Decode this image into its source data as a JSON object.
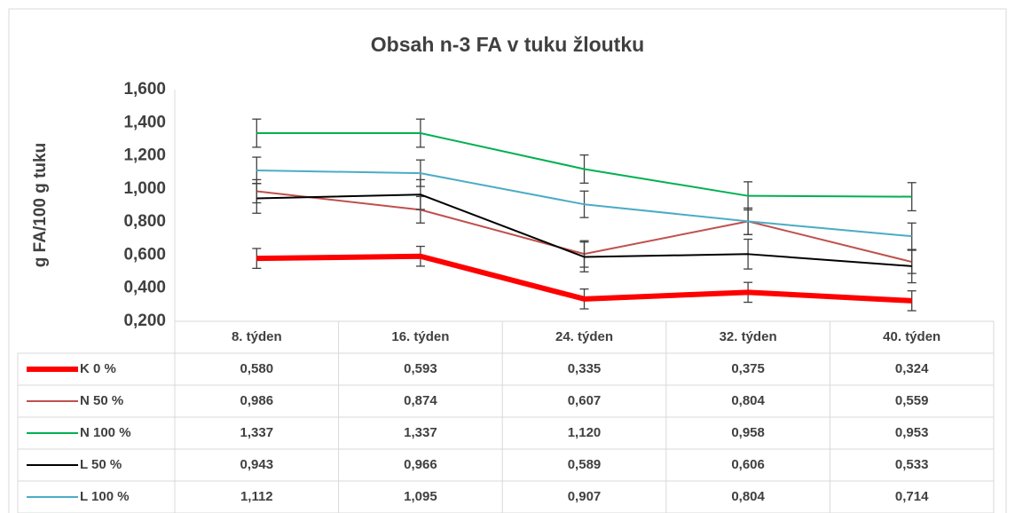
{
  "chart_data": {
    "type": "line",
    "title": "Obsah n-3 FA v tuku žloutku",
    "y_label": "g FA/100 g tuku",
    "categories": [
      "8. týden",
      "16. týden",
      "24. týden",
      "32. týden",
      "40. týden"
    ],
    "ylim": [
      0.2,
      1.6
    ],
    "yticks": [
      {
        "value": 0.2,
        "label": "0,200"
      },
      {
        "value": 0.4,
        "label": "0,400"
      },
      {
        "value": 0.6,
        "label": "0,600"
      },
      {
        "value": 0.8,
        "label": "0,800"
      },
      {
        "value": 1.0,
        "label": "1,000"
      },
      {
        "value": 1.2,
        "label": "1,200"
      },
      {
        "value": 1.4,
        "label": "1,400"
      },
      {
        "value": 1.6,
        "label": "1,600"
      }
    ],
    "grid": false,
    "legend": "table",
    "series": [
      {
        "name": "K 0 %",
        "color": "#ff0000",
        "width": 6,
        "values": [
          0.58,
          0.593,
          0.335,
          0.375,
          0.324
        ],
        "value_labels": [
          "0,580",
          "0,593",
          "0,335",
          "0,375",
          "0,324"
        ],
        "errors": [
          0.06,
          0.06,
          0.06,
          0.06,
          0.06
        ]
      },
      {
        "name": "N 50 %",
        "color": "#c0504d",
        "width": 2,
        "values": [
          0.986,
          0.874,
          0.607,
          0.804,
          0.559
        ],
        "value_labels": [
          "0,986",
          "0,874",
          "0,607",
          "0,804",
          "0,559"
        ],
        "errors": [
          0.07,
          0.08,
          0.08,
          0.08,
          0.07
        ]
      },
      {
        "name": "N 100 %",
        "color": "#00b050",
        "width": 2,
        "values": [
          1.337,
          1.337,
          1.12,
          0.958,
          0.953
        ],
        "value_labels": [
          "1,337",
          "1,337",
          "1,120",
          "0,958",
          "0,953"
        ],
        "errors": [
          0.085,
          0.085,
          0.085,
          0.085,
          0.085
        ]
      },
      {
        "name": "L 50 %",
        "color": "#000000",
        "width": 2,
        "values": [
          0.943,
          0.966,
          0.589,
          0.606,
          0.533
        ],
        "value_labels": [
          "0,943",
          "0,966",
          "0,589",
          "0,606",
          "0,533"
        ],
        "errors": [
          0.09,
          0.09,
          0.09,
          0.09,
          0.1
        ]
      },
      {
        "name": "L 100 %",
        "color": "#4bacc6",
        "width": 2,
        "values": [
          1.112,
          1.095,
          0.907,
          0.804,
          0.714
        ],
        "value_labels": [
          "1,112",
          "1,095",
          "0,907",
          "0,804",
          "0,714"
        ],
        "errors": [
          0.08,
          0.08,
          0.08,
          0.08,
          0.08
        ]
      }
    ]
  }
}
